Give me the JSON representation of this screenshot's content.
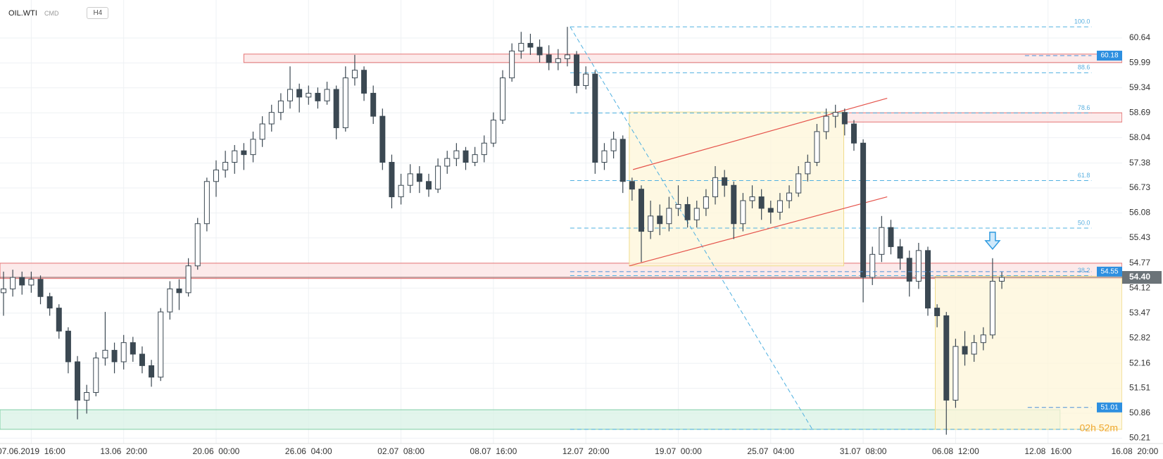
{
  "chart_data": {
    "type": "candlestick",
    "symbol": "OIL.WTI",
    "market": "CMD",
    "timeframe": "H4",
    "categories": [
      null,
      null,
      null,
      "07.06.2019  16:00",
      null,
      null,
      null,
      null,
      null,
      null,
      null,
      null,
      null,
      "13.06  20:00",
      null,
      null,
      null,
      null,
      null,
      null,
      null,
      null,
      null,
      "20.06  00:00",
      null,
      null,
      null,
      null,
      null,
      null,
      null,
      null,
      null,
      "26.06  04:00",
      null,
      null,
      null,
      null,
      null,
      null,
      null,
      null,
      null,
      "02.07  08:00",
      null,
      null,
      null,
      null,
      null,
      null,
      null,
      null,
      null,
      "08.07  16:00",
      null,
      null,
      null,
      null,
      null,
      null,
      null,
      null,
      null,
      "12.07  20:00",
      null,
      null,
      null,
      null,
      null,
      null,
      null,
      null,
      null,
      "19.07  00:00",
      null,
      null,
      null,
      null,
      null,
      null,
      null,
      null,
      null,
      "25.07  04:00",
      null,
      null,
      null,
      null,
      null,
      null,
      null,
      null,
      null,
      "31.07  08:00",
      null,
      null,
      null,
      null,
      null,
      null,
      null,
      null,
      null,
      "06.08  12:00",
      null,
      null,
      null,
      null,
      null,
      null,
      null,
      null,
      null,
      "12.08  16:00",
      null,
      null,
      null,
      null,
      null,
      null,
      null,
      null,
      null,
      "16.08  20:00"
    ],
    "candles": [
      [
        54.0,
        54.55,
        53.4,
        54.1
      ],
      [
        54.1,
        54.6,
        53.9,
        54.4
      ],
      [
        54.4,
        54.55,
        53.95,
        54.2
      ],
      [
        54.2,
        54.55,
        54.0,
        54.35
      ],
      [
        54.35,
        54.45,
        53.7,
        53.9
      ],
      [
        53.9,
        54.0,
        53.4,
        53.6
      ],
      [
        53.6,
        53.7,
        52.8,
        53.0
      ],
      [
        53.0,
        53.1,
        51.9,
        52.2
      ],
      [
        52.2,
        52.35,
        50.7,
        51.2
      ],
      [
        51.2,
        51.6,
        50.85,
        51.4
      ],
      [
        51.4,
        52.45,
        51.3,
        52.3
      ],
      [
        52.3,
        53.5,
        52.1,
        52.5
      ],
      [
        52.5,
        52.7,
        51.9,
        52.2
      ],
      [
        52.2,
        52.9,
        52.0,
        52.7
      ],
      [
        52.7,
        52.85,
        52.2,
        52.4
      ],
      [
        52.4,
        52.6,
        51.9,
        52.1
      ],
      [
        52.1,
        52.25,
        51.55,
        51.8
      ],
      [
        51.8,
        53.6,
        51.7,
        53.5
      ],
      [
        53.5,
        54.3,
        53.3,
        54.1
      ],
      [
        54.1,
        54.35,
        53.55,
        54.0
      ],
      [
        54.0,
        54.9,
        53.9,
        54.7
      ],
      [
        54.7,
        55.95,
        54.6,
        55.8
      ],
      [
        55.8,
        57.0,
        55.6,
        56.9
      ],
      [
        56.9,
        57.45,
        56.5,
        57.2
      ],
      [
        57.2,
        57.7,
        57.0,
        57.4
      ],
      [
        57.4,
        57.85,
        57.1,
        57.7
      ],
      [
        57.7,
        57.9,
        57.2,
        57.6
      ],
      [
        57.6,
        58.2,
        57.4,
        58.0
      ],
      [
        58.0,
        58.6,
        57.8,
        58.4
      ],
      [
        58.4,
        58.9,
        58.2,
        58.7
      ],
      [
        58.7,
        59.2,
        58.5,
        59.0
      ],
      [
        59.0,
        59.9,
        58.8,
        59.3
      ],
      [
        59.3,
        59.45,
        58.7,
        59.1
      ],
      [
        59.1,
        59.4,
        58.9,
        59.2
      ],
      [
        59.2,
        59.35,
        58.8,
        59.0
      ],
      [
        59.0,
        59.5,
        58.9,
        59.3
      ],
      [
        59.3,
        59.4,
        58.0,
        58.3
      ],
      [
        58.3,
        59.9,
        58.2,
        59.6
      ],
      [
        59.6,
        60.2,
        59.4,
        59.8
      ],
      [
        59.8,
        59.9,
        59.0,
        59.2
      ],
      [
        59.2,
        59.4,
        58.4,
        58.6
      ],
      [
        58.6,
        58.8,
        57.2,
        57.4
      ],
      [
        57.4,
        57.6,
        56.2,
        56.5
      ],
      [
        56.5,
        57.1,
        56.3,
        56.8
      ],
      [
        56.8,
        57.35,
        56.6,
        57.1
      ],
      [
        57.1,
        57.3,
        56.6,
        56.9
      ],
      [
        56.9,
        57.1,
        56.5,
        56.7
      ],
      [
        56.7,
        57.5,
        56.6,
        57.3
      ],
      [
        57.3,
        57.7,
        57.1,
        57.5
      ],
      [
        57.5,
        57.9,
        57.3,
        57.7
      ],
      [
        57.7,
        57.8,
        57.2,
        57.4
      ],
      [
        57.4,
        57.8,
        57.3,
        57.6
      ],
      [
        57.6,
        58.1,
        57.4,
        57.9
      ],
      [
        57.9,
        58.7,
        57.8,
        58.5
      ],
      [
        58.5,
        59.8,
        58.4,
        59.6
      ],
      [
        59.6,
        60.5,
        59.5,
        60.3
      ],
      [
        60.3,
        60.8,
        60.1,
        60.5
      ],
      [
        60.5,
        60.75,
        60.2,
        60.4
      ],
      [
        60.4,
        60.6,
        60.0,
        60.2
      ],
      [
        60.2,
        60.45,
        59.8,
        60.0
      ],
      [
        60.0,
        60.35,
        59.8,
        60.1
      ],
      [
        60.1,
        60.93,
        59.9,
        60.2
      ],
      [
        60.2,
        60.3,
        59.2,
        59.4
      ],
      [
        59.4,
        59.9,
        59.3,
        59.7
      ],
      [
        59.7,
        59.8,
        57.1,
        57.4
      ],
      [
        57.4,
        57.9,
        57.2,
        57.7
      ],
      [
        57.7,
        58.2,
        57.5,
        58.0
      ],
      [
        58.0,
        58.1,
        56.6,
        56.9
      ],
      [
        56.9,
        57.0,
        56.4,
        56.7
      ],
      [
        56.7,
        56.8,
        54.8,
        55.6
      ],
      [
        55.6,
        56.4,
        55.4,
        56.0
      ],
      [
        56.0,
        56.3,
        55.5,
        55.8
      ],
      [
        55.8,
        56.5,
        55.6,
        56.2
      ],
      [
        56.2,
        56.8,
        56.0,
        56.3
      ],
      [
        56.3,
        56.5,
        55.7,
        55.9
      ],
      [
        55.9,
        56.4,
        55.7,
        56.2
      ],
      [
        56.2,
        56.7,
        56.0,
        56.5
      ],
      [
        56.5,
        57.3,
        56.3,
        57.0
      ],
      [
        57.0,
        57.2,
        56.5,
        56.8
      ],
      [
        56.8,
        56.9,
        55.4,
        55.8
      ],
      [
        55.8,
        56.6,
        55.6,
        56.4
      ],
      [
        56.4,
        56.8,
        56.2,
        56.5
      ],
      [
        56.5,
        56.7,
        55.9,
        56.2
      ],
      [
        56.2,
        56.4,
        55.8,
        56.1
      ],
      [
        56.1,
        56.6,
        55.9,
        56.4
      ],
      [
        56.4,
        56.8,
        56.2,
        56.6
      ],
      [
        56.6,
        57.3,
        56.5,
        57.1
      ],
      [
        57.1,
        57.6,
        56.9,
        57.4
      ],
      [
        57.4,
        58.4,
        57.3,
        58.2
      ],
      [
        58.2,
        58.8,
        58.0,
        58.6
      ],
      [
        58.6,
        58.9,
        58.3,
        58.7
      ],
      [
        58.7,
        58.8,
        58.1,
        58.4
      ],
      [
        58.4,
        58.5,
        57.7,
        57.9
      ],
      [
        57.9,
        58.0,
        53.75,
        54.4
      ],
      [
        54.4,
        55.2,
        54.2,
        55.0
      ],
      [
        55.0,
        56.0,
        54.8,
        55.7
      ],
      [
        55.7,
        55.9,
        55.0,
        55.2
      ],
      [
        55.2,
        55.4,
        54.6,
        54.9
      ],
      [
        54.9,
        55.1,
        53.9,
        54.3
      ],
      [
        54.3,
        55.3,
        54.1,
        55.1
      ],
      [
        55.1,
        55.2,
        53.4,
        53.6
      ],
      [
        53.6,
        53.7,
        53.1,
        53.4
      ],
      [
        53.4,
        53.5,
        50.3,
        51.2
      ],
      [
        51.2,
        52.8,
        51.0,
        52.6
      ],
      [
        52.6,
        53.0,
        52.1,
        52.4
      ],
      [
        52.4,
        52.9,
        52.2,
        52.7
      ],
      [
        52.7,
        53.1,
        52.5,
        52.9
      ],
      [
        52.9,
        54.9,
        52.8,
        54.3
      ],
      [
        54.3,
        54.55,
        54.1,
        54.4
      ],
      null,
      null,
      null,
      null,
      null,
      null,
      null,
      null,
      null,
      null,
      null,
      null,
      null,
      null,
      null
    ],
    "colors": {
      "up": "#ffffff",
      "down": "#3b4852",
      "edge": "#3b4852"
    },
    "ylim": [
      50.07,
      61.63
    ],
    "yticks": [
      60.64,
      59.99,
      59.34,
      58.69,
      58.04,
      57.38,
      56.73,
      56.08,
      55.43,
      54.77,
      54.12,
      53.47,
      52.82,
      52.16,
      51.51,
      50.86,
      50.21
    ],
    "grid": true,
    "zones": [
      {
        "from": 26,
        "to": 121,
        "low": 60.0,
        "high": 60.22,
        "color": "#fbe3e3",
        "edge": "#e57373"
      },
      {
        "from": 91.1,
        "to": 121,
        "low": 58.45,
        "high": 58.69,
        "color": "#fbe3e3",
        "edge": "#e57373"
      },
      {
        "from": -0.4,
        "to": 121,
        "low": 54.37,
        "high": 54.77,
        "color": "#fbe3e3",
        "edge": "#e57373"
      },
      {
        "from": -0.4,
        "to": 114.3,
        "low": 50.44,
        "high": 50.95,
        "color": "#d8f2e6",
        "edge": "#7fcfa5"
      },
      {
        "from": 67.7,
        "to": 90.9,
        "low": 54.7,
        "high": 58.71,
        "color": "#fdf6d8",
        "edge": "#f0dc8c"
      },
      {
        "from": 100.8,
        "to": 121,
        "low": 50.44,
        "high": 54.43,
        "color": "#fdf6d8",
        "edge": "#f0dc8c"
      }
    ],
    "channel": [
      {
        "x": [
          68.1,
          95.6
        ],
        "y": [
          57.21,
          59.07
        ]
      },
      {
        "x": [
          67.7,
          95.6
        ],
        "y": [
          54.7,
          56.5
        ]
      }
    ],
    "diagonal": {
      "x": [
        61.3,
        87.5
      ],
      "y": [
        60.93,
        50.44
      ]
    },
    "fib": {
      "high": 60.93,
      "low": 50.44,
      "from": 61.3,
      "to": 117.7,
      "levels": [
        {
          "value": 100,
          "label": "100.0"
        },
        88.6,
        78.6,
        61.8,
        {
          "value": 50,
          "label": "50.0"
        },
        38.2
      ]
    },
    "price_tags": [
      {
        "value": 60.18,
        "from": 110.5
      },
      {
        "value": 54.55,
        "from": 61.3
      },
      {
        "value": 51.01,
        "from": 110.8
      }
    ],
    "last_price": {
      "value": 54.4,
      "label": "54.40"
    },
    "marker": {
      "x": 107,
      "price": 55.1
    },
    "countdown": "02h 52m"
  }
}
